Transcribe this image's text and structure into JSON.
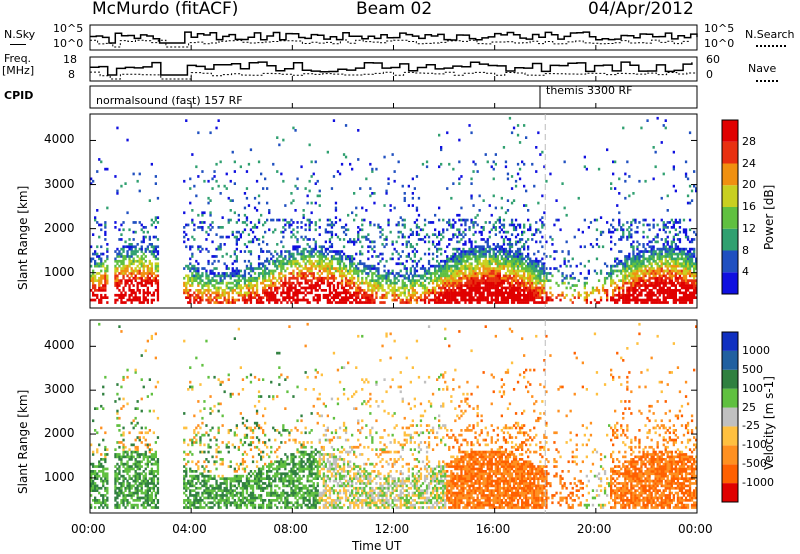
{
  "header": {
    "station": "McMurdo (fitACF)",
    "beam": "Beam 02",
    "date": "04/Apr/2012"
  },
  "top_panels": {
    "nsky_label": "N.Sky",
    "nsky_ticks": [
      "10^5",
      "10^0"
    ],
    "nsearch_label": "N.Search",
    "nsearch_ticks": [
      "10^5",
      "10^0"
    ],
    "freq_label": "Freq.",
    "freq_unit": "[MHz]",
    "freq_ticks": [
      "18",
      "8"
    ],
    "nave_label": "Nave",
    "nave_ticks": [
      "60",
      "0"
    ],
    "cpid_label": "CPID",
    "cpid_segments": [
      {
        "name": "normalsound (fast) 157 RF",
        "start_hour": 0,
        "end_hour": 18
      },
      {
        "name": "themis 3300 RF",
        "start_hour": 18,
        "end_hour": 24
      }
    ]
  },
  "chart_data": [
    {
      "type": "heatmap",
      "panel": "power",
      "ylabel": "Slant Range [km]",
      "yticks": [
        1000,
        2000,
        3000,
        4000
      ],
      "ylim": [
        200,
        4600
      ],
      "xlim": [
        0,
        24
      ],
      "colorbar_label": "Power [dB]",
      "colorbar_ticks": [
        "4",
        "8",
        "12",
        "16",
        "20",
        "24",
        "28"
      ],
      "colors": [
        "#1010e0",
        "#2050c0",
        "#30a070",
        "#60c040",
        "#c8d020",
        "#f09010",
        "#e83010",
        "#e00000"
      ],
      "data_gaps_hours": [
        [
          0.7,
          0.95
        ],
        [
          2.7,
          3.6
        ]
      ],
      "marker_hour": 18
    },
    {
      "type": "heatmap",
      "panel": "velocity",
      "ylabel": "Slant Range [km]",
      "yticks": [
        1000,
        2000,
        3000,
        4000
      ],
      "ylim": [
        200,
        4600
      ],
      "xlim": [
        0,
        24
      ],
      "xticks": [
        "00:00",
        "04:00",
        "08:00",
        "12:00",
        "16:00",
        "20:00",
        "00:00"
      ],
      "xlabel": "Time UT",
      "colorbar_label": "Velocity [m s-1]",
      "colorbar_ticks": [
        "-1000",
        "-500",
        "-100",
        "-25",
        "25",
        "100",
        "500",
        "1000"
      ],
      "colors": [
        "#e00000",
        "#ff6000",
        "#ff9020",
        "#ffc040",
        "#c0c0c0",
        "#60c040",
        "#308040",
        "#2060a0",
        "#1030c0"
      ],
      "data_gaps_hours": [
        [
          0.7,
          0.95
        ],
        [
          2.7,
          3.6
        ]
      ],
      "marker_hour": 18
    }
  ]
}
